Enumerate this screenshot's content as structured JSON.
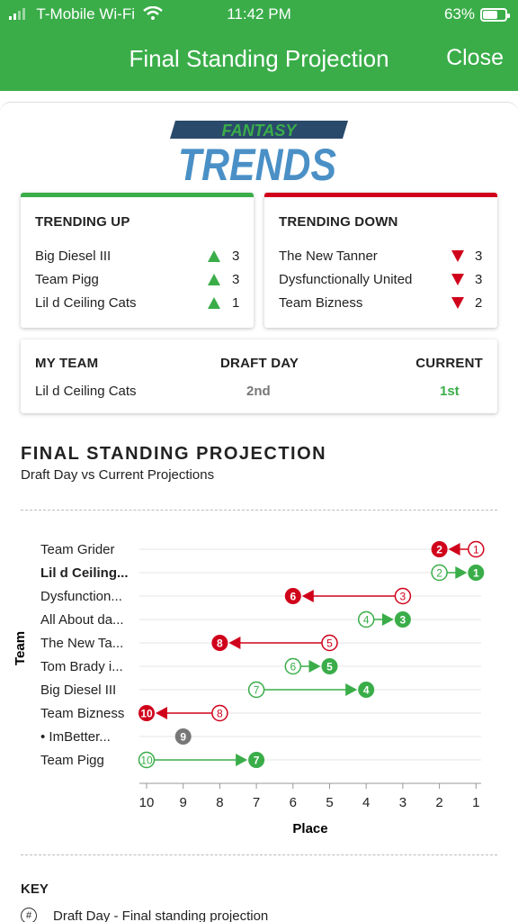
{
  "status": {
    "carrier": "T-Mobile Wi-Fi",
    "time": "11:42 PM",
    "battery": "63%",
    "battery_level": 0.63
  },
  "nav": {
    "title": "Final Standing Projection",
    "close_label": "Close"
  },
  "logo": {
    "line1": "FANTASY",
    "line2": "TRENDS"
  },
  "colors": {
    "green": "#3aad49",
    "red": "#d0021b",
    "gray": "#777777",
    "navy": "#2a4a6b",
    "logo_blue": "#4a90c6"
  },
  "trending_up": {
    "title": "TRENDING UP",
    "items": [
      {
        "team": "Big Diesel III",
        "change": "3"
      },
      {
        "team": "Team Pigg",
        "change": "3"
      },
      {
        "team": "Lil d Ceiling Cats",
        "change": "1"
      }
    ]
  },
  "trending_down": {
    "title": "TRENDING DOWN",
    "items": [
      {
        "team": "The New Tanner",
        "change": "3"
      },
      {
        "team": "Dysfunctionally United",
        "change": "3"
      },
      {
        "team": "Team Bizness",
        "change": "2"
      }
    ]
  },
  "my_team": {
    "headers": [
      "MY TEAM",
      "DRAFT DAY",
      "CURRENT"
    ],
    "team": "Lil d Ceiling Cats",
    "draft_day": "2nd",
    "current": "1st"
  },
  "section": {
    "title": "FINAL STANDING PROJECTION",
    "subtitle": "Draft Day vs Current Projections"
  },
  "chart_data": {
    "type": "scatter",
    "title": "",
    "xlabel": "Place",
    "ylabel": "Team",
    "x_ticks": [
      10,
      9,
      8,
      7,
      6,
      5,
      4,
      3,
      2,
      1
    ],
    "xlim": [
      10,
      1
    ],
    "grid": true,
    "rows": [
      {
        "team": "Team Grider",
        "draft": 1,
        "current": 2,
        "trend": "down",
        "bold": false
      },
      {
        "team": "Lil d Ceiling...",
        "draft": 2,
        "current": 1,
        "trend": "up",
        "bold": true
      },
      {
        "team": "Dysfunction...",
        "draft": 3,
        "current": 6,
        "trend": "down",
        "bold": false
      },
      {
        "team": "All About da...",
        "draft": 4,
        "current": 3,
        "trend": "up",
        "bold": false
      },
      {
        "team": "The New Ta...",
        "draft": 5,
        "current": 8,
        "trend": "down",
        "bold": false
      },
      {
        "team": "Tom Brady i...",
        "draft": 6,
        "current": 5,
        "trend": "up",
        "bold": false
      },
      {
        "team": "Big Diesel III",
        "draft": 7,
        "current": 4,
        "trend": "up",
        "bold": false
      },
      {
        "team": "Team Bizness",
        "draft": 8,
        "current": 10,
        "trend": "down",
        "bold": false
      },
      {
        "team": "• ImBetter...",
        "draft": 9,
        "current": 9,
        "trend": "same",
        "bold": false
      },
      {
        "team": "Team Pigg",
        "draft": 10,
        "current": 7,
        "trend": "up",
        "bold": false
      }
    ]
  },
  "key": {
    "title": "KEY",
    "items": [
      {
        "icon": "#",
        "label": "Draft Day - Final standing projection"
      }
    ]
  }
}
